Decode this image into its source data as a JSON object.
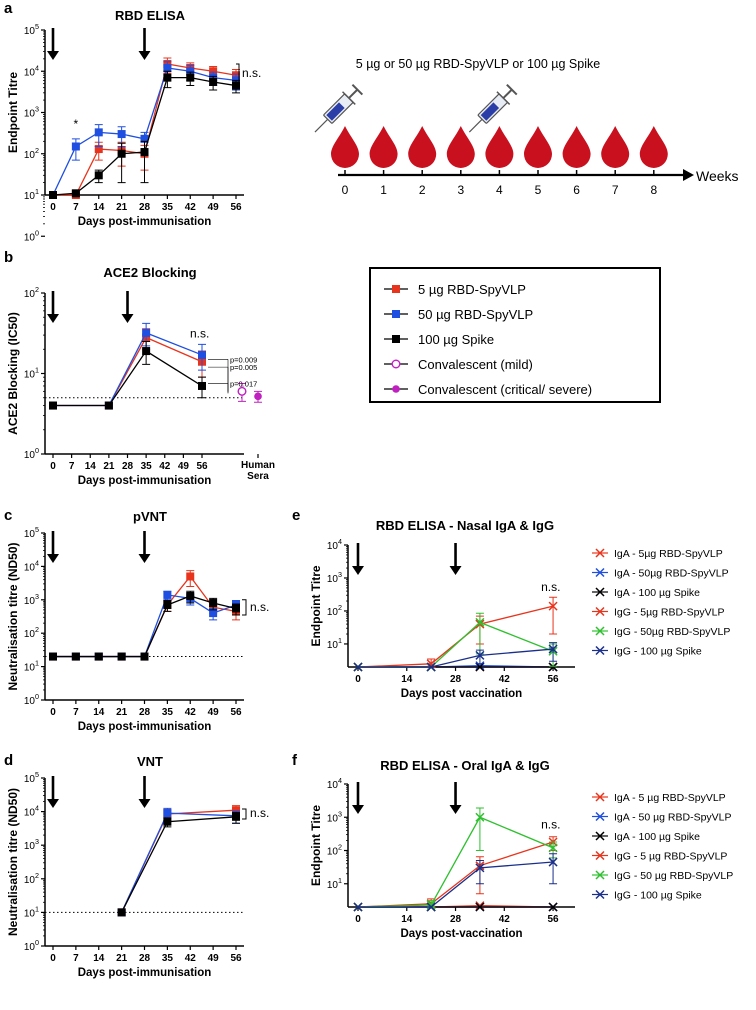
{
  "colors": {
    "red": "#e8341c",
    "blue": "#1f4fe0",
    "black": "#000000",
    "green": "#2ec02e",
    "navy": "#1a2f8a",
    "magenta": "#c020c0",
    "drop": "#c8101e"
  },
  "panels": {
    "a": "a",
    "b": "b",
    "c": "c",
    "d": "d",
    "e": "e",
    "f": "f"
  },
  "timeline": {
    "label": "5 µg or 50 µg RBD-SpyVLP or 100 µg Spike",
    "axis_label": "Weeks",
    "weeks": [
      "0",
      "1",
      "2",
      "3",
      "4",
      "5",
      "6",
      "7",
      "8"
    ],
    "syringe_weeks": [
      0,
      4
    ]
  },
  "legend_main": {
    "items": [
      {
        "label": "5 µg RBD-SpyVLP",
        "marker": "square",
        "color": "red"
      },
      {
        "label": "50 µg RBD-SpyVLP",
        "marker": "square",
        "color": "blue"
      },
      {
        "label": "100 µg Spike",
        "marker": "square",
        "color": "black"
      },
      {
        "label": "Convalescent (mild)",
        "marker": "open-circle",
        "color": "magenta"
      },
      {
        "label": "Convalescent (critical/ severe)",
        "marker": "filled-circle",
        "color": "magenta"
      }
    ]
  },
  "chart_data": [
    {
      "id": "a",
      "type": "line",
      "title": "RBD ELISA",
      "xlabel": "Days post-immunisation",
      "ylabel": "Endpoint Titre",
      "yscale": "log",
      "ylim": [
        1,
        100000
      ],
      "xlim": [
        0,
        56
      ],
      "x_ticks": [
        "0",
        "7",
        "14",
        "21",
        "28",
        "35",
        "42",
        "49",
        "56"
      ],
      "y_ticks": [
        "10^0",
        "10^1",
        "10^2",
        "10^3",
        "10^4",
        "10^5"
      ],
      "baseline": 10,
      "arrows_at": [
        0,
        28
      ],
      "annotations": [
        {
          "x": 7,
          "text": "*"
        },
        {
          "x": 56,
          "text": "n.s."
        }
      ],
      "series": [
        {
          "name": "5 µg RBD-SpyVLP",
          "color": "red",
          "marker": "square",
          "x": [
            0,
            7,
            14,
            21,
            28,
            35,
            42,
            49,
            56
          ],
          "y": [
            10,
            10,
            130,
            120,
            100,
            15000,
            12000,
            10000,
            8000
          ],
          "err": [
            0,
            0,
            60,
            70,
            60,
            6000,
            4000,
            3000,
            3000
          ]
        },
        {
          "name": "50 µg RBD-SpyVLP",
          "color": "blue",
          "marker": "square",
          "x": [
            0,
            7,
            14,
            21,
            28,
            35,
            42,
            49,
            56
          ],
          "y": [
            10,
            150,
            330,
            300,
            230,
            12000,
            10000,
            7000,
            6000
          ],
          "err": [
            0,
            80,
            180,
            150,
            100,
            5000,
            4000,
            2500,
            2500
          ]
        },
        {
          "name": "100 µg Spike",
          "color": "black",
          "marker": "square",
          "x": [
            0,
            7,
            14,
            21,
            28,
            35,
            42,
            49,
            56
          ],
          "y": [
            10,
            11,
            30,
            100,
            110,
            7000,
            7000,
            5500,
            4500
          ],
          "err": [
            0,
            2,
            10,
            80,
            90,
            3000,
            2500,
            2000,
            1500
          ]
        }
      ]
    },
    {
      "id": "b",
      "type": "line",
      "title": "ACE2 Blocking",
      "xlabel": "Days post-immunisation",
      "ylabel": "ACE2 Blocking (IC50)",
      "yscale": "log",
      "ylim": [
        1,
        100
      ],
      "xlim": [
        0,
        56
      ],
      "x_ticks": [
        "0",
        "7",
        "14",
        "21",
        "28",
        "35",
        "42",
        "49",
        "56",
        "Human Sera"
      ],
      "y_ticks": [
        "10^0",
        "10^1",
        "10^2"
      ],
      "baseline": 5,
      "arrows_at": [
        0,
        28
      ],
      "annotations": [
        {
          "x": 56,
          "text": "n.s."
        },
        {
          "text": "p=0.009"
        },
        {
          "text": "p=0.005"
        },
        {
          "text": "p=0.017"
        }
      ],
      "series": [
        {
          "name": "5 µg RBD-SpyVLP",
          "color": "red",
          "marker": "square",
          "x": [
            0,
            21,
            35,
            56
          ],
          "y": [
            4,
            4,
            28,
            14
          ],
          "err": [
            0,
            0,
            8,
            5
          ]
        },
        {
          "name": "50 µg RBD-SpyVLP",
          "color": "blue",
          "marker": "square",
          "x": [
            0,
            21,
            35,
            56
          ],
          "y": [
            4,
            4,
            32,
            17
          ],
          "err": [
            0,
            0,
            10,
            6
          ]
        },
        {
          "name": "100 µg Spike",
          "color": "black",
          "marker": "square",
          "x": [
            0,
            21,
            35,
            56
          ],
          "y": [
            4,
            4,
            19,
            7
          ],
          "err": [
            0,
            0,
            6,
            2
          ]
        },
        {
          "name": "Convalescent (mild)",
          "color": "magenta",
          "marker": "open-circle",
          "x": [
            "Human Sera"
          ],
          "y": [
            6
          ],
          "err": [
            1.5
          ]
        },
        {
          "name": "Convalescent (critical/ severe)",
          "color": "magenta",
          "marker": "filled-circle",
          "x": [
            "Human Sera"
          ],
          "y": [
            5.2
          ],
          "err": [
            0.8
          ]
        }
      ]
    },
    {
      "id": "c",
      "type": "line",
      "title": "pVNT",
      "xlabel": "Days post-immunisation",
      "ylabel": "Neutralisation titre (ND50)",
      "yscale": "log",
      "ylim": [
        1,
        100000
      ],
      "xlim": [
        0,
        56
      ],
      "x_ticks": [
        "0",
        "7",
        "14",
        "21",
        "28",
        "35",
        "42",
        "49",
        "56"
      ],
      "y_ticks": [
        "10^0",
        "10^1",
        "10^2",
        "10^3",
        "10^4",
        "10^5"
      ],
      "baseline": 20,
      "arrows_at": [
        0,
        28
      ],
      "annotations": [
        {
          "x": 56,
          "text": "n.s."
        }
      ],
      "series": [
        {
          "name": "5 µg RBD-SpyVLP",
          "color": "red",
          "marker": "square",
          "x": [
            0,
            7,
            14,
            21,
            28,
            35,
            42,
            49,
            56
          ],
          "y": [
            20,
            20,
            20,
            20,
            20,
            700,
            5000,
            600,
            450
          ],
          "err": [
            0,
            0,
            0,
            0,
            0,
            250,
            2500,
            200,
            200
          ]
        },
        {
          "name": "50 µg RBD-SpyVLP",
          "color": "blue",
          "marker": "square",
          "x": [
            0,
            7,
            14,
            21,
            28,
            35,
            42,
            49,
            56
          ],
          "y": [
            20,
            20,
            20,
            20,
            20,
            1400,
            1100,
            400,
            700
          ],
          "err": [
            0,
            0,
            0,
            0,
            0,
            400,
            400,
            150,
            250
          ]
        },
        {
          "name": "100 µg Spike",
          "color": "black",
          "marker": "square",
          "x": [
            0,
            7,
            14,
            21,
            28,
            35,
            42,
            49,
            56
          ],
          "y": [
            20,
            20,
            20,
            20,
            20,
            700,
            1300,
            800,
            550
          ],
          "err": [
            0,
            0,
            0,
            0,
            0,
            250,
            500,
            300,
            200
          ]
        }
      ]
    },
    {
      "id": "d",
      "type": "line",
      "title": "VNT",
      "xlabel": "Days post-immunisation",
      "ylabel": "Neutralisation titre (ND50)",
      "yscale": "log",
      "ylim": [
        1,
        100000
      ],
      "xlim": [
        0,
        56
      ],
      "x_ticks": [
        "0",
        "7",
        "14",
        "21",
        "28",
        "35",
        "42",
        "49",
        "56"
      ],
      "y_ticks": [
        "10^0",
        "10^1",
        "10^2",
        "10^3",
        "10^4",
        "10^5"
      ],
      "baseline": 10,
      "arrows_at": [
        0,
        28
      ],
      "annotations": [
        {
          "x": 56,
          "text": "n.s."
        }
      ],
      "series": [
        {
          "name": "5 µg RBD-SpyVLP",
          "color": "red",
          "marker": "square",
          "x": [
            21,
            35,
            56
          ],
          "y": [
            10,
            8500,
            11000
          ],
          "err": [
            0,
            3000,
            4000
          ]
        },
        {
          "name": "50 µg RBD-SpyVLP",
          "color": "blue",
          "marker": "square",
          "x": [
            21,
            35,
            56
          ],
          "y": [
            10,
            9000,
            7500
          ],
          "err": [
            0,
            3500,
            3000
          ]
        },
        {
          "name": "100 µg Spike",
          "color": "black",
          "marker": "square",
          "x": [
            21,
            35,
            56
          ],
          "y": [
            10,
            5000,
            7000
          ],
          "err": [
            0,
            1500,
            2500
          ]
        }
      ]
    },
    {
      "id": "e",
      "type": "line",
      "title": "RBD ELISA - Nasal IgA & IgG",
      "xlabel": "Days post vaccination",
      "ylabel": "Endpoint Titre",
      "yscale": "log",
      "ylim": [
        2,
        10000
      ],
      "xlim": [
        0,
        60
      ],
      "x_ticks": [
        "0",
        "14",
        "28",
        "42",
        "56"
      ],
      "y_ticks": [
        "10^1",
        "10^2",
        "10^3",
        "10^4"
      ],
      "arrows_at": [
        0,
        28
      ],
      "annotations": [
        {
          "x": 56,
          "text": "n.s."
        }
      ],
      "series": [
        {
          "name": "IgA - 5µg RBD-SpyVLP",
          "color": "red",
          "marker": "x",
          "x": [
            0,
            21,
            35,
            56
          ],
          "y": [
            2,
            2,
            2,
            2
          ]
        },
        {
          "name": "IgA - 50µg RBD-SpyVLP",
          "color": "blue",
          "marker": "x",
          "x": [
            0,
            21,
            35,
            56
          ],
          "y": [
            2,
            2,
            2.2,
            2
          ]
        },
        {
          "name": "IgA - 100 µg Spike",
          "color": "black",
          "marker": "x",
          "x": [
            0,
            21,
            35,
            56
          ],
          "y": [
            2,
            2,
            2,
            2
          ]
        },
        {
          "name": "IgG - 5µg RBD-SpyVLP",
          "color": "red",
          "marker": "x",
          "x": [
            0,
            21,
            35,
            56
          ],
          "y": [
            2,
            2.5,
            40,
            140
          ],
          "err": [
            0,
            1,
            30,
            120
          ]
        },
        {
          "name": "IgG - 50µg RBD-SpyVLP",
          "color": "green",
          "marker": "x",
          "x": [
            0,
            21,
            35,
            56
          ],
          "y": [
            2,
            2,
            45,
            6
          ],
          "err": [
            0,
            0,
            40,
            4
          ]
        },
        {
          "name": "IgG - 100 µg Spike",
          "color": "navy",
          "marker": "x",
          "x": [
            0,
            21,
            35,
            56
          ],
          "y": [
            2,
            2,
            4.5,
            7
          ],
          "err": [
            0,
            0,
            2,
            4
          ]
        }
      ]
    },
    {
      "id": "f",
      "type": "line",
      "title": "RBD ELISA - Oral IgA & IgG",
      "xlabel": "Days post-vaccination",
      "ylabel": "Endpoint Titre",
      "yscale": "log",
      "ylim": [
        2,
        10000
      ],
      "xlim": [
        0,
        60
      ],
      "x_ticks": [
        "0",
        "14",
        "28",
        "42",
        "56"
      ],
      "y_ticks": [
        "10^1",
        "10^2",
        "10^3",
        "10^4"
      ],
      "arrows_at": [
        0,
        28
      ],
      "annotations": [
        {
          "x": 56,
          "text": "n.s."
        }
      ],
      "series": [
        {
          "name": "IgA - 5 µg RBD-SpyVLP",
          "color": "red",
          "marker": "x",
          "x": [
            0,
            21,
            35,
            56
          ],
          "y": [
            2,
            2,
            2.2,
            2
          ]
        },
        {
          "name": "IgA - 50 µg RBD-SpyVLP",
          "color": "blue",
          "marker": "x",
          "x": [
            0,
            21,
            35,
            56
          ],
          "y": [
            2,
            2,
            2,
            2
          ]
        },
        {
          "name": "IgA - 100 µg Spike",
          "color": "black",
          "marker": "x",
          "x": [
            0,
            21,
            35,
            56
          ],
          "y": [
            2,
            2,
            2,
            2
          ]
        },
        {
          "name": "IgG - 5 µg RBD-SpyVLP",
          "color": "red",
          "marker": "x",
          "x": [
            0,
            21,
            35,
            56
          ],
          "y": [
            2,
            2.5,
            35,
            180
          ],
          "err": [
            0,
            1,
            30,
            80
          ]
        },
        {
          "name": "IgG - 50 µg RBD-SpyVLP",
          "color": "green",
          "marker": "x",
          "x": [
            0,
            21,
            35,
            56
          ],
          "y": [
            2,
            2.3,
            1000,
            120
          ],
          "err": [
            0,
            0.8,
            900,
            60
          ]
        },
        {
          "name": "IgG - 100 µg Spike",
          "color": "navy",
          "marker": "x",
          "x": [
            0,
            21,
            35,
            56
          ],
          "y": [
            2,
            2,
            30,
            45
          ],
          "err": [
            0,
            0,
            20,
            35
          ]
        }
      ]
    }
  ]
}
